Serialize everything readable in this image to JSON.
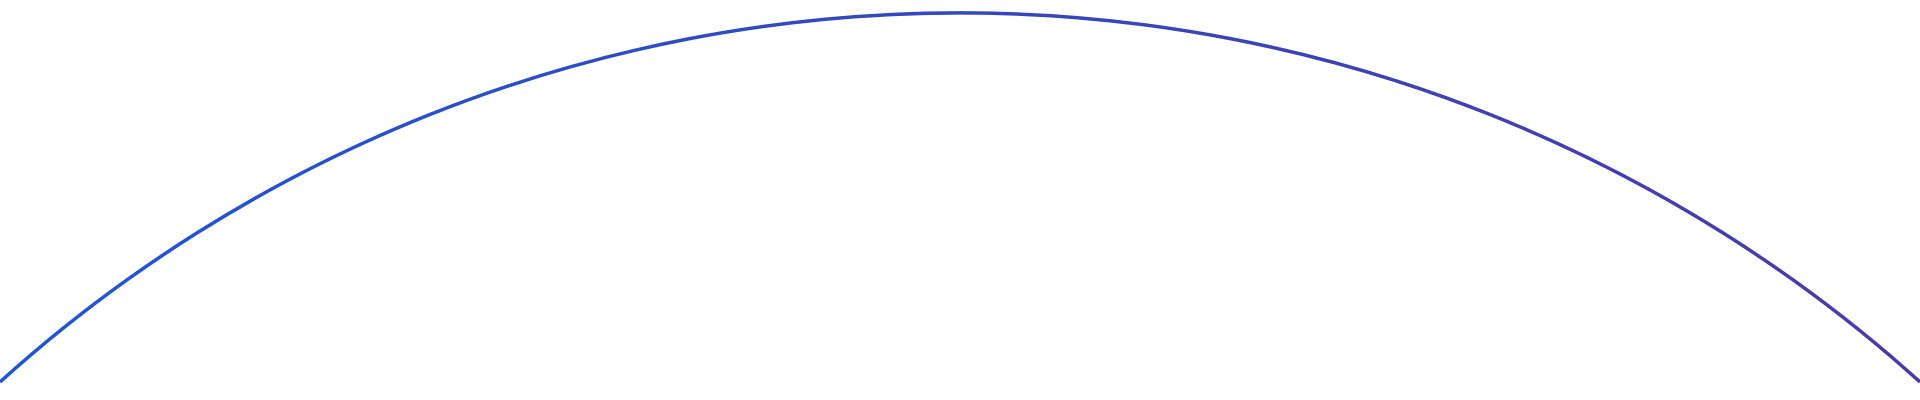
{
  "decoration": {
    "shape": "arc",
    "gradient_start": "#1f55d6",
    "gradient_end": "#4a3aa8",
    "background": "#ffffff"
  }
}
